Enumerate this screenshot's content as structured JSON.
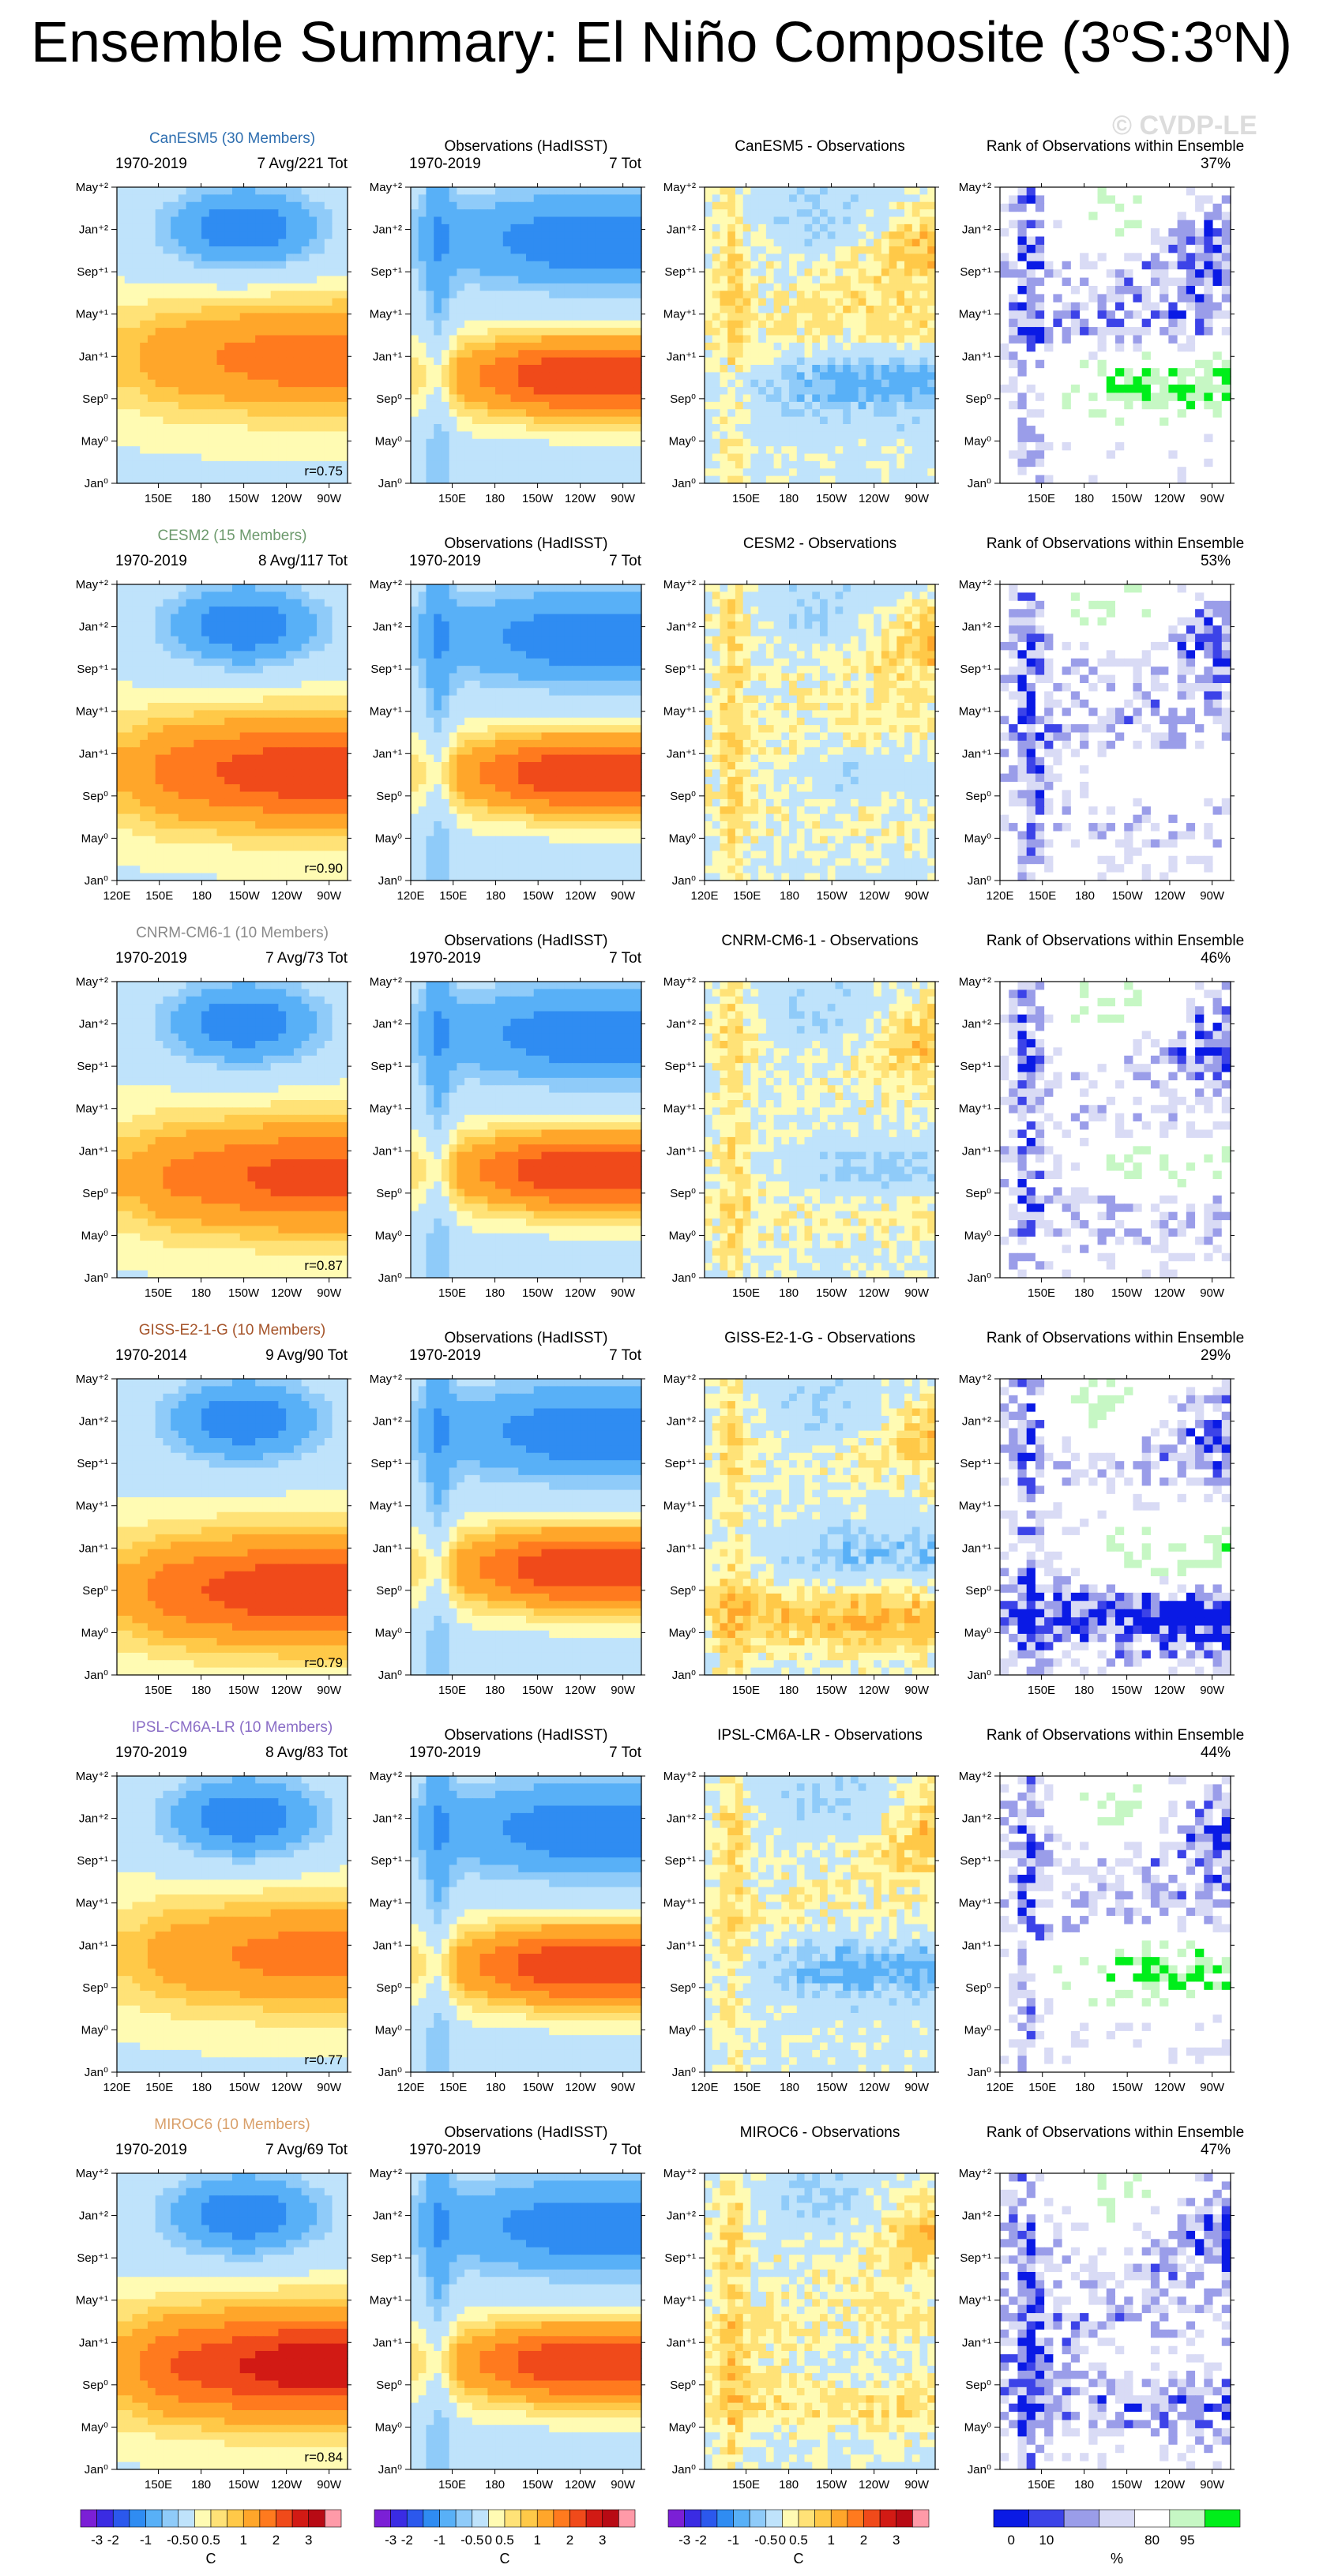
{
  "title": "Ensemble Summary: El Niño Composite (3°S:3°N)",
  "title_main": "Ensemble Summary: El Niño Composite (3",
  "title_o1": "o",
  "title_mid": "S:3",
  "title_o2": "o",
  "title_end": "N)",
  "watermark": "© CVDP-LE",
  "colors": {
    "sst_levels": [
      "#7b1fd6",
      "#3a2be3",
      "#2b58ed",
      "#2f8cf2",
      "#58b0f7",
      "#8fcbf9",
      "#bfe3fb",
      "#fffbb3",
      "#ffe277",
      "#ffc948",
      "#ffa62a",
      "#ff7a1e",
      "#f04a1a",
      "#d21a14",
      "#b80a14",
      "#ff9aa8"
    ],
    "rank_levels": [
      "#0a1ae5",
      "#3c43e8",
      "#9a9de9",
      "#d9dbf5",
      "#ffffff",
      "#c6f7c4",
      "#00ee1a"
    ]
  },
  "chart_data": {
    "type": "heatmap",
    "description_axes": {
      "y_ticks": [
        "Jan⁰",
        "May⁰",
        "Sep⁰",
        "Jan⁺¹",
        "May⁺¹",
        "Sep⁺¹",
        "Jan⁺²",
        "May⁺²"
      ],
      "x_ticks_short": [
        "150E",
        "180",
        "150W",
        "120W",
        "90W"
      ],
      "x_ticks_long": [
        "120E",
        "150E",
        "180",
        "150W",
        "120W",
        "90W"
      ]
    },
    "sst_colorbar": {
      "labels": [
        "-3",
        "-2",
        "-1",
        "-0.5",
        "0",
        "0.5",
        "1",
        "2",
        "3"
      ],
      "unit": "C"
    },
    "rank_colorbar": {
      "labels": [
        "0",
        "10",
        "80",
        "95"
      ],
      "unit": "%"
    },
    "rows": [
      {
        "model": "CanESM5 (30 Members)",
        "model_color": "#2f6fb0",
        "period": "1970-2019",
        "stats": "7 Avg/221 Tot",
        "r": "r=0.75",
        "diff_title": "CanESM5 - Observations",
        "rank_pct": "37%",
        "xticks": "short",
        "warm": 1.6,
        "lag": 0.55
      },
      {
        "model": "CESM2 (15 Members)",
        "model_color": "#6d9a6d",
        "period": "1970-2019",
        "stats": "8 Avg/117 Tot",
        "r": "r=0.90",
        "diff_title": "CESM2 - Observations",
        "rank_pct": "53%",
        "xticks": "long",
        "warm": 2.2,
        "lag": 0.45
      },
      {
        "model": "CNRM-CM6-1 (10 Members)",
        "model_color": "#8a8a8a",
        "period": "1970-2019",
        "stats": "7 Avg/73 Tot",
        "r": "r=0.87",
        "diff_title": "CNRM-CM6-1 - Observations",
        "rank_pct": "46%",
        "xticks": "short",
        "warm": 2.0,
        "lag": 0.4
      },
      {
        "model": "GISS-E2-1-G (10 Members)",
        "model_color": "#a5542a",
        "period": "1970-2014",
        "stats": "9 Avg/90 Tot",
        "r": "r=0.79",
        "diff_title": "GISS-E2-1-G - Observations",
        "rank_pct": "29%",
        "xticks": "short",
        "warm": 2.3,
        "lag": 0.3
      },
      {
        "model": "IPSL-CM6A-LR (10 Members)",
        "model_color": "#8a6dc6",
        "period": "1970-2019",
        "stats": "8 Avg/83 Tot",
        "r": "r=0.77",
        "diff_title": "IPSL-CM6A-LR - Observations",
        "rank_pct": "44%",
        "xticks": "long",
        "warm": 1.5,
        "lag": 0.5
      },
      {
        "model": "MIROC6 (10 Members)",
        "model_color": "#d9a06b",
        "period": "1970-2019",
        "stats": "7 Avg/69 Tot",
        "r": "r=0.84",
        "diff_title": "MIROC6 - Observations",
        "rank_pct": "47%",
        "xticks": "short",
        "warm": 2.6,
        "lag": 0.42
      }
    ],
    "obs_title": "Observations (HadISST)",
    "obs_period": "1970-2019",
    "obs_stats": "7 Tot",
    "rank_title": "Rank of Observations within Ensemble"
  }
}
